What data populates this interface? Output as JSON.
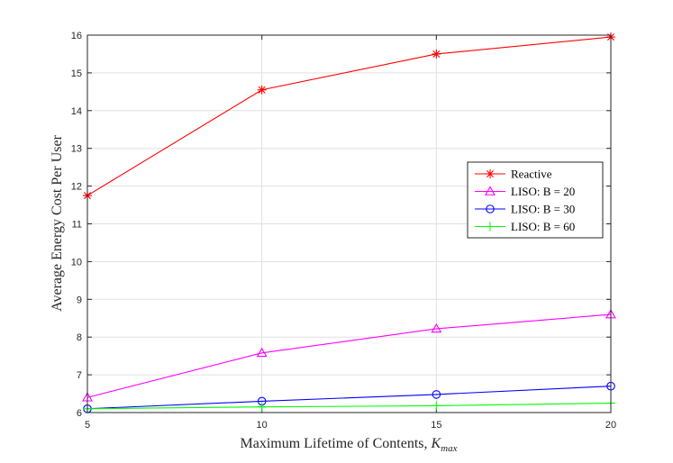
{
  "chart_data": {
    "type": "line",
    "xlabel": "Maximum Lifetime of Contents, ",
    "xlabel_math": {
      "base": "K",
      "sub": "max"
    },
    "ylabel": "Average Energy Cost Per User",
    "x": [
      5,
      10,
      15,
      20
    ],
    "xlim": [
      5,
      20
    ],
    "ylim": [
      6,
      16
    ],
    "xticks": [
      "5",
      "10",
      "15",
      "20"
    ],
    "yticks": [
      "6",
      "7",
      "8",
      "9",
      "10",
      "11",
      "12",
      "13",
      "14",
      "15",
      "16"
    ],
    "grid": true,
    "legend_position": "center-right",
    "series": [
      {
        "name": "Reactive",
        "values": [
          11.75,
          14.55,
          15.5,
          15.95
        ],
        "color": "#ff0000",
        "marker": "asterisk"
      },
      {
        "name": "LISO: B = 20",
        "values": [
          6.4,
          7.58,
          8.22,
          8.6
        ],
        "color": "#ff00ff",
        "marker": "triangle"
      },
      {
        "name": "LISO: B = 30",
        "values": [
          6.1,
          6.3,
          6.48,
          6.7
        ],
        "color": "#0000ff",
        "marker": "circle"
      },
      {
        "name": "LISO: B = 60",
        "values": [
          6.1,
          6.15,
          6.18,
          6.25
        ],
        "color": "#00ff00",
        "marker": "plus"
      }
    ]
  }
}
